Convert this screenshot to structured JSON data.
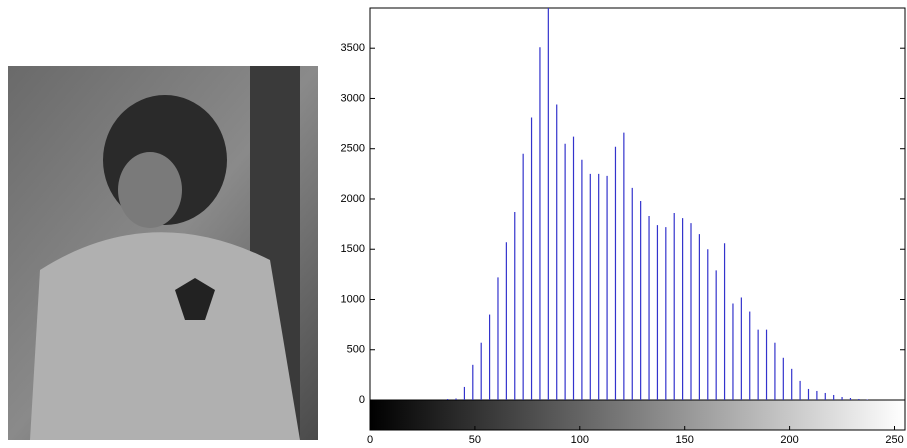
{
  "chart_data": {
    "type": "stem",
    "x": [
      37,
      41,
      45,
      49,
      53,
      57,
      61,
      65,
      69,
      73,
      77,
      81,
      85,
      89,
      93,
      97,
      101,
      105,
      109,
      113,
      117,
      121,
      125,
      129,
      133,
      137,
      141,
      145,
      149,
      153,
      157,
      161,
      165,
      169,
      173,
      177,
      181,
      185,
      189,
      193,
      197,
      201,
      205,
      209,
      213,
      217,
      221,
      225,
      229,
      233,
      237
    ],
    "values": [
      10,
      15,
      130,
      350,
      570,
      850,
      1220,
      1570,
      1870,
      2450,
      2810,
      3510,
      3950,
      2940,
      2550,
      2620,
      2390,
      2250,
      2250,
      2230,
      2520,
      2660,
      2110,
      1980,
      1830,
      1740,
      1720,
      1860,
      1810,
      1760,
      1650,
      1500,
      1290,
      1560,
      960,
      1020,
      880,
      700,
      700,
      570,
      420,
      310,
      190,
      110,
      90,
      70,
      50,
      30,
      20,
      10,
      5
    ],
    "color": "#3333cc",
    "xlim": [
      0,
      255
    ],
    "ylim": [
      0,
      3900
    ],
    "xticks": [
      0,
      50,
      100,
      150,
      200,
      250
    ],
    "yticks": [
      0,
      500,
      1000,
      1500,
      2000,
      2500,
      3000,
      3500
    ]
  }
}
